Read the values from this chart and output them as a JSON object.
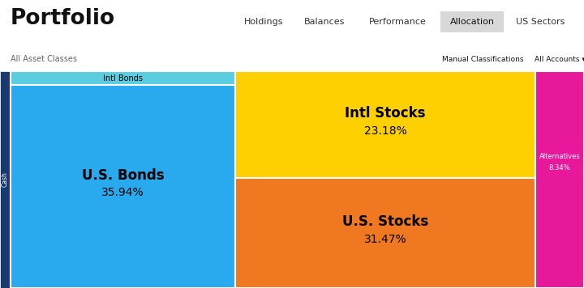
{
  "title": "Portfolio",
  "nav_items": [
    "Holdings",
    "Balances",
    "Performance",
    "Allocation",
    "US Sectors"
  ],
  "active_nav": "Allocation",
  "filter_label": "All Asset Classes",
  "bg_color": "#ffffff",
  "cash_label": "Cash",
  "cash_color": "#1a3a6e",
  "segments": [
    {
      "label": "Intl Bonds",
      "pct_label": "",
      "color": "#5acde0",
      "label_fontsize": 7,
      "label_color": "#000000",
      "pct_color": "#000000",
      "pct_fontsize": 9,
      "bold_label": false
    },
    {
      "label": "U.S. Bonds",
      "pct_label": "35.94%",
      "color": "#29aaee",
      "label_fontsize": 12,
      "label_color": "#000000",
      "pct_color": "#000000",
      "pct_fontsize": 10,
      "bold_label": true
    },
    {
      "label": "Intl Stocks",
      "pct_label": "23.18%",
      "color": "#ffd000",
      "label_fontsize": 12,
      "label_color": "#000000",
      "pct_color": "#000000",
      "pct_fontsize": 10,
      "bold_label": true
    },
    {
      "label": "U.S. Stocks",
      "pct_label": "31.47%",
      "color": "#f07820",
      "label_fontsize": 12,
      "label_color": "#000000",
      "pct_color": "#000000",
      "pct_fontsize": 10,
      "bold_label": true
    },
    {
      "label": "Alternatives",
      "pct_label": "8.34%",
      "color": "#e8189a",
      "label_fontsize": 6,
      "label_color": "#ffffff",
      "pct_color": "#ffffff",
      "pct_fontsize": 6,
      "bold_label": false
    }
  ]
}
